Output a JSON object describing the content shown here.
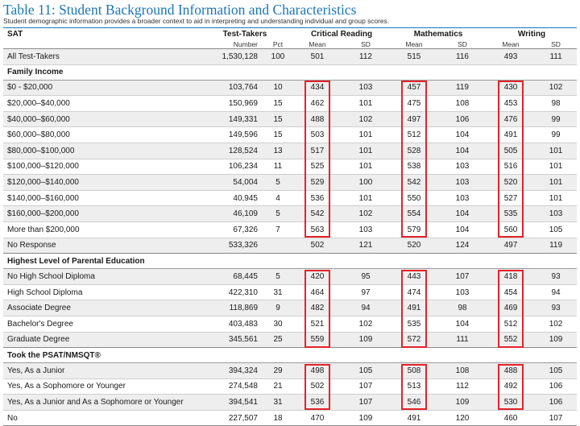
{
  "title": "Table 11: Student Background Information and Characteristics",
  "subtitle": "Student demographic information provides a broader context to aid in interpreting and understanding individual and group scores.",
  "header": {
    "sat": "SAT",
    "test_takers": "Test-Takers",
    "critical_reading": "Critical Reading",
    "mathematics": "Mathematics",
    "writing": "Writing",
    "number": "Number",
    "pct": "Pct",
    "mean": "Mean",
    "sd": "SD"
  },
  "all_row": {
    "label": "All Test-Takers",
    "number": "1,530,128",
    "pct": "100",
    "cr_mean": "501",
    "cr_sd": "112",
    "m_mean": "515",
    "m_sd": "116",
    "w_mean": "493",
    "w_sd": "111"
  },
  "sections": [
    {
      "heading": "Family Income",
      "rows": [
        {
          "label": "$0 - $20,000",
          "number": "103,764",
          "pct": "10",
          "cr_mean": "434",
          "cr_sd": "103",
          "m_mean": "457",
          "m_sd": "119",
          "w_mean": "430",
          "w_sd": "102"
        },
        {
          "label": "$20,000–$40,000",
          "number": "150,969",
          "pct": "15",
          "cr_mean": "462",
          "cr_sd": "101",
          "m_mean": "475",
          "m_sd": "108",
          "w_mean": "453",
          "w_sd": "98"
        },
        {
          "label": "$40,000–$60,000",
          "number": "149,331",
          "pct": "15",
          "cr_mean": "488",
          "cr_sd": "102",
          "m_mean": "497",
          "m_sd": "106",
          "w_mean": "476",
          "w_sd": "99"
        },
        {
          "label": "$60,000–$80,000",
          "number": "149,596",
          "pct": "15",
          "cr_mean": "503",
          "cr_sd": "101",
          "m_mean": "512",
          "m_sd": "104",
          "w_mean": "491",
          "w_sd": "99"
        },
        {
          "label": "$80,000–$100,000",
          "number": "128,524",
          "pct": "13",
          "cr_mean": "517",
          "cr_sd": "101",
          "m_mean": "528",
          "m_sd": "104",
          "w_mean": "505",
          "w_sd": "101"
        },
        {
          "label": "$100,000–$120,000",
          "number": "106,234",
          "pct": "11",
          "cr_mean": "525",
          "cr_sd": "101",
          "m_mean": "538",
          "m_sd": "103",
          "w_mean": "516",
          "w_sd": "101"
        },
        {
          "label": "$120,000–$140,000",
          "number": "54,004",
          "pct": "5",
          "cr_mean": "529",
          "cr_sd": "100",
          "m_mean": "542",
          "m_sd": "103",
          "w_mean": "520",
          "w_sd": "101"
        },
        {
          "label": "$140,000–$160,000",
          "number": "40,945",
          "pct": "4",
          "cr_mean": "536",
          "cr_sd": "101",
          "m_mean": "550",
          "m_sd": "103",
          "w_mean": "527",
          "w_sd": "101"
        },
        {
          "label": "$160,000–$200,000",
          "number": "46,109",
          "pct": "5",
          "cr_mean": "542",
          "cr_sd": "102",
          "m_mean": "554",
          "m_sd": "104",
          "w_mean": "535",
          "w_sd": "103"
        },
        {
          "label": "More than $200,000",
          "number": "67,326",
          "pct": "7",
          "cr_mean": "563",
          "cr_sd": "103",
          "m_mean": "579",
          "m_sd": "104",
          "w_mean": "560",
          "w_sd": "105"
        },
        {
          "label": "No Response",
          "number": "533,326",
          "pct": "",
          "cr_mean": "502",
          "cr_sd": "121",
          "m_mean": "520",
          "m_sd": "124",
          "w_mean": "497",
          "w_sd": "119"
        }
      ]
    },
    {
      "heading": "Highest Level of Parental Education",
      "rows": [
        {
          "label": "No High School Diploma",
          "number": "68,445",
          "pct": "5",
          "cr_mean": "420",
          "cr_sd": "95",
          "m_mean": "443",
          "m_sd": "107",
          "w_mean": "418",
          "w_sd": "93"
        },
        {
          "label": "High School Diploma",
          "number": "422,310",
          "pct": "31",
          "cr_mean": "464",
          "cr_sd": "97",
          "m_mean": "474",
          "m_sd": "103",
          "w_mean": "454",
          "w_sd": "94"
        },
        {
          "label": "Associate Degree",
          "number": "118,869",
          "pct": "9",
          "cr_mean": "482",
          "cr_sd": "94",
          "m_mean": "491",
          "m_sd": "98",
          "w_mean": "469",
          "w_sd": "93"
        },
        {
          "label": "Bachelor's Degree",
          "number": "403,483",
          "pct": "30",
          "cr_mean": "521",
          "cr_sd": "102",
          "m_mean": "535",
          "m_sd": "104",
          "w_mean": "512",
          "w_sd": "102"
        },
        {
          "label": "Graduate Degree",
          "number": "345,561",
          "pct": "25",
          "cr_mean": "559",
          "cr_sd": "109",
          "m_mean": "572",
          "m_sd": "111",
          "w_mean": "552",
          "w_sd": "109"
        }
      ]
    },
    {
      "heading": "Took the PSAT/NMSQT®",
      "rows": [
        {
          "label": "Yes, As a Junior",
          "number": "394,324",
          "pct": "29",
          "cr_mean": "498",
          "cr_sd": "105",
          "m_mean": "508",
          "m_sd": "108",
          "w_mean": "488",
          "w_sd": "105"
        },
        {
          "label": "Yes, As a Sophomore or Younger",
          "number": "274,548",
          "pct": "21",
          "cr_mean": "502",
          "cr_sd": "107",
          "m_mean": "513",
          "m_sd": "112",
          "w_mean": "492",
          "w_sd": "106"
        },
        {
          "label": "Yes, As a Junior and As a Sophomore or Younger",
          "number": "394,541",
          "pct": "31",
          "cr_mean": "536",
          "cr_sd": "107",
          "m_mean": "546",
          "m_sd": "109",
          "w_mean": "530",
          "w_sd": "106"
        },
        {
          "label": "No",
          "number": "227,507",
          "pct": "18",
          "cr_mean": "470",
          "cr_sd": "109",
          "m_mean": "491",
          "m_sd": "120",
          "w_mean": "460",
          "w_sd": "107"
        }
      ]
    }
  ],
  "highlight_color": "#e4232a",
  "title_color": "#1a76b8",
  "shade_color": "#eeeeee"
}
